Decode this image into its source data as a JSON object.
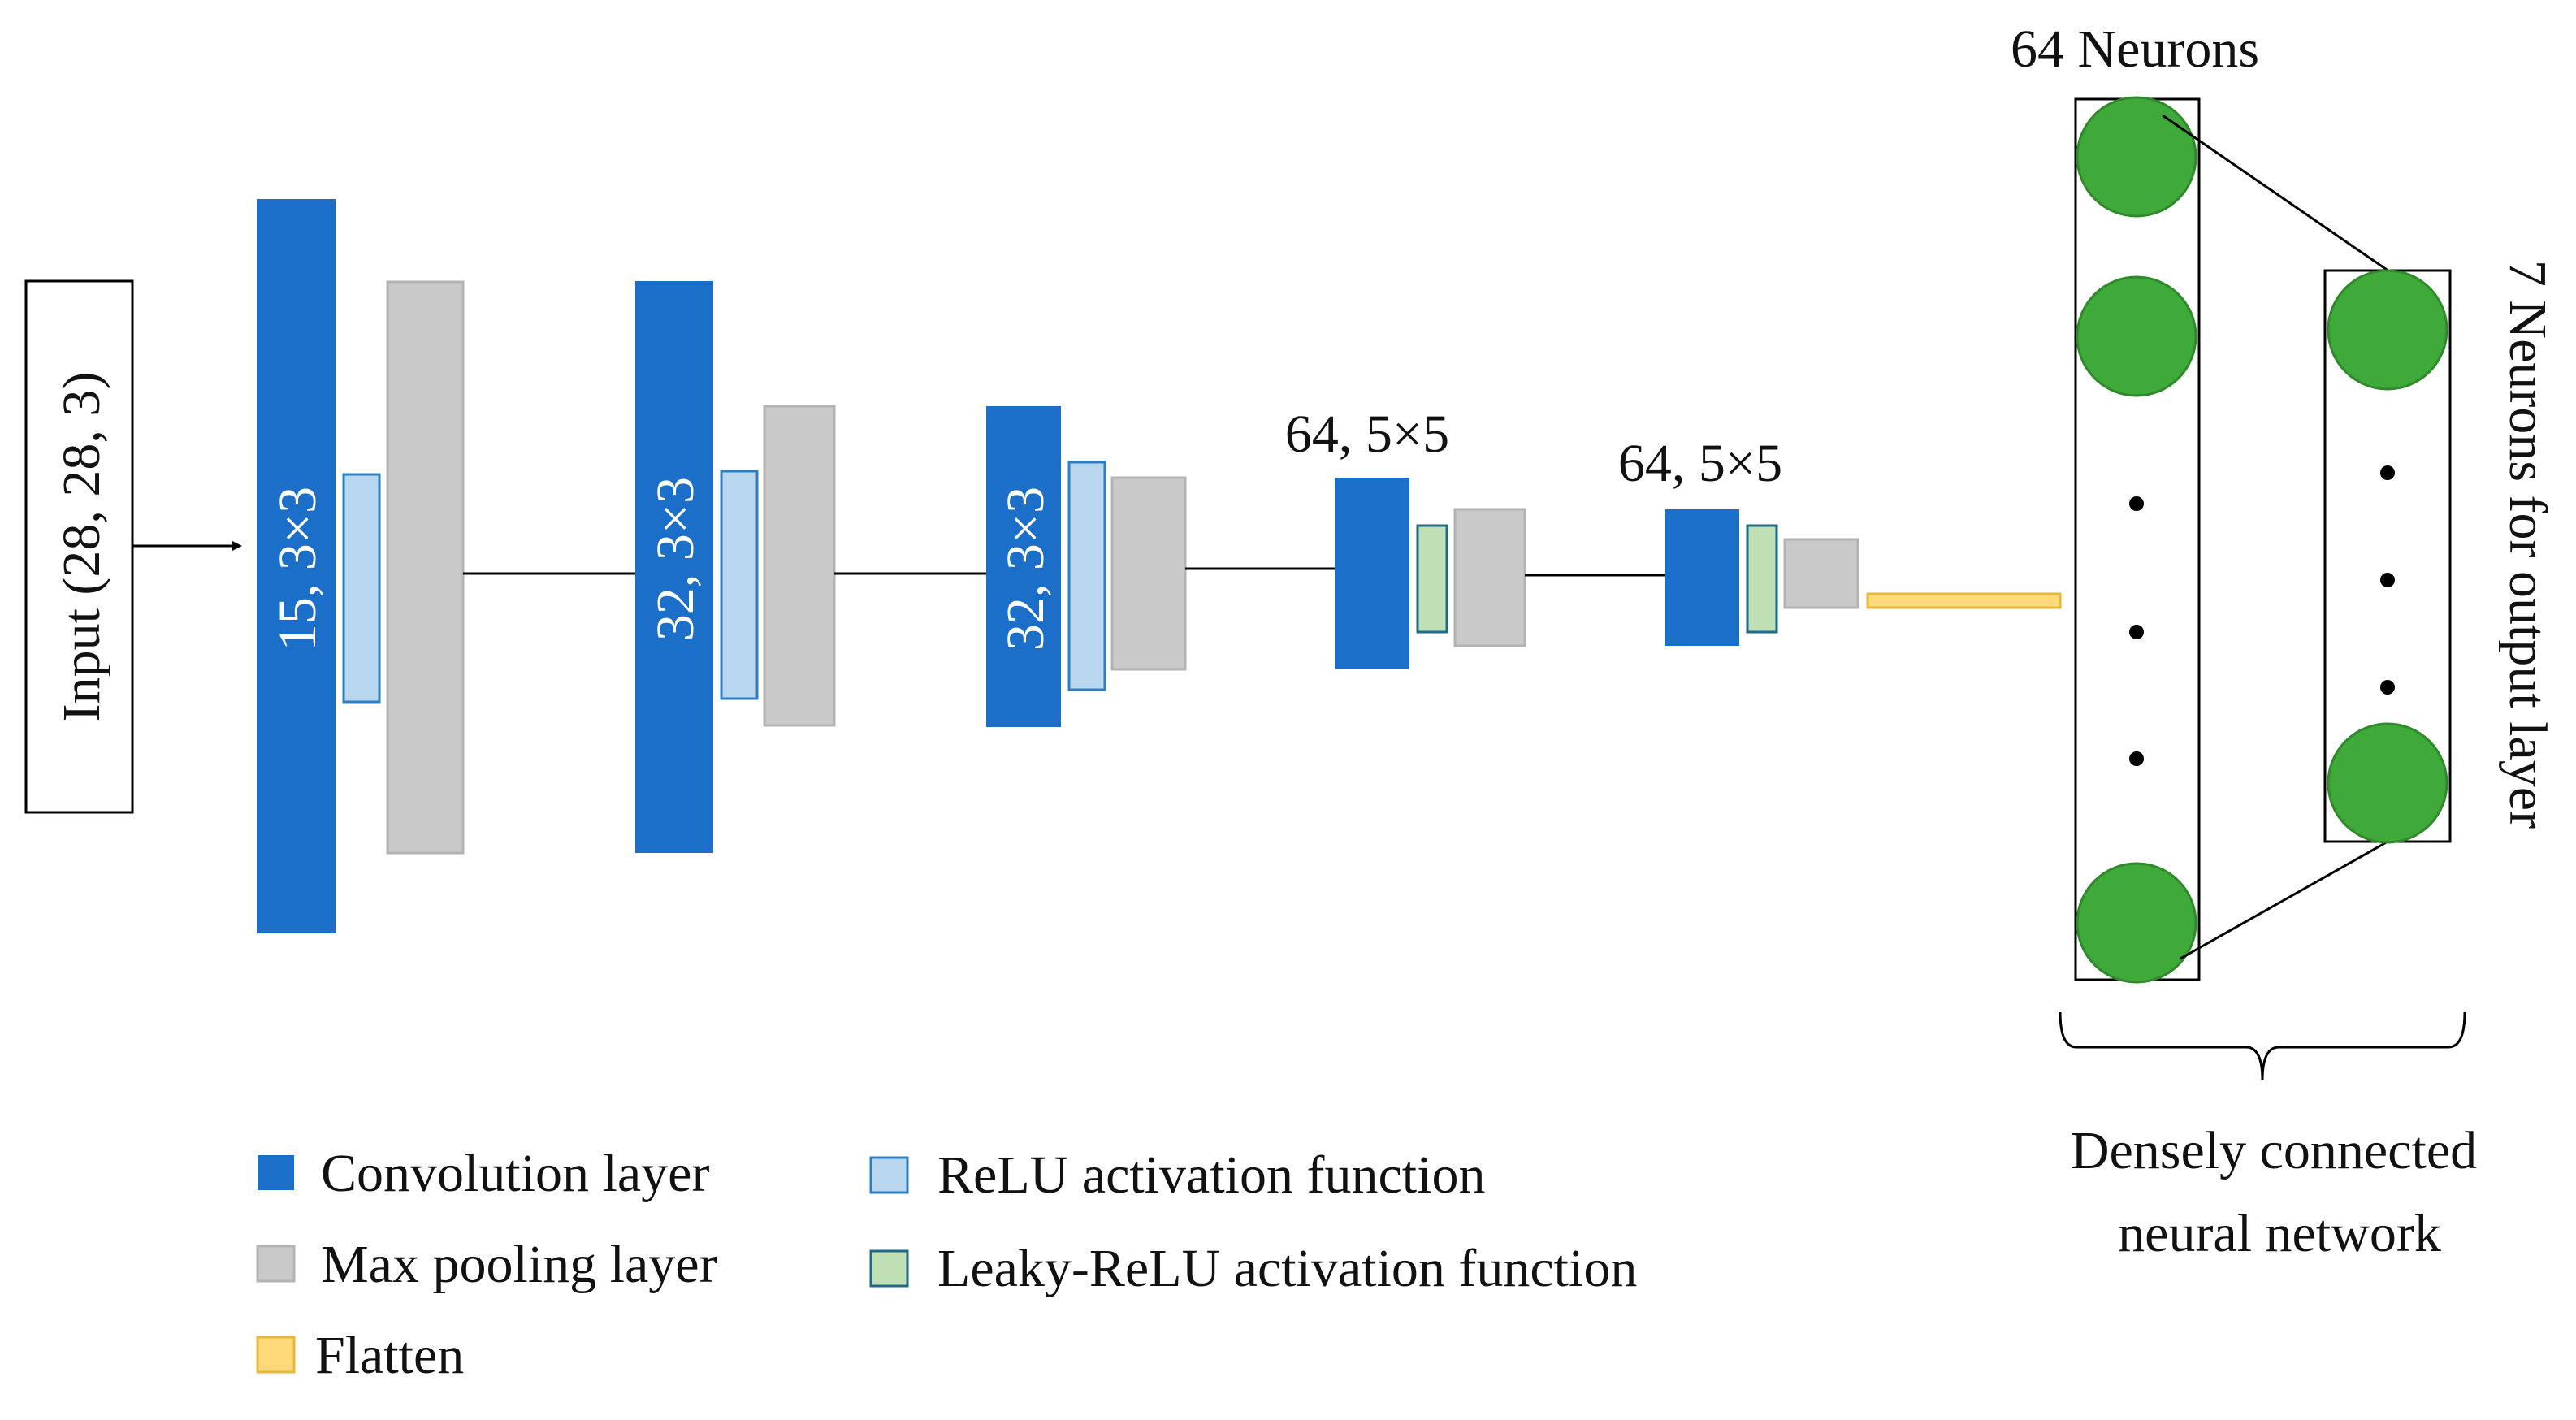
{
  "input": {
    "label": "Input  (28, 28, 3)"
  },
  "layers": {
    "conv1": {
      "label": "15, 3×3"
    },
    "conv2": {
      "label": "32, 3×3"
    },
    "conv3": {
      "label": "32, 3×3"
    },
    "conv4": {
      "label": "64, 5×5"
    },
    "conv5": {
      "label": "64, 5×5"
    }
  },
  "dense": {
    "hidden_label": "64 Neurons",
    "output_label": "7 Neurons for output layer",
    "caption_line1": "Densely connected",
    "caption_line2": "neural network"
  },
  "legend": {
    "convolution": "Convolution layer",
    "max_pooling": "Max pooling layer",
    "flatten": "Flatten",
    "relu": "ReLU activation function",
    "leaky_relu": "Leaky-ReLU activation function"
  },
  "colors": {
    "convolution": "#1c6fc8",
    "max_pooling": "#c9c9c9",
    "relu": "#b9d8f0",
    "leaky_relu": "#bfe0b5",
    "flatten": "#ffd97a",
    "neuron": "#3fa93a"
  }
}
